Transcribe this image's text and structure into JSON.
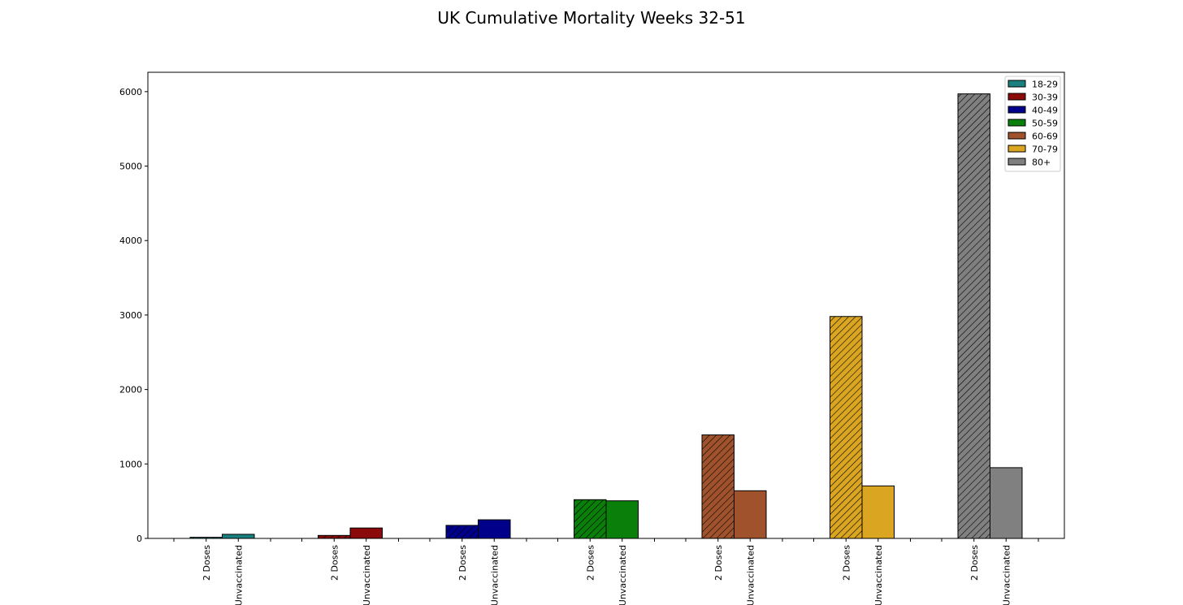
{
  "chart_data": {
    "type": "bar",
    "title": "UK Cumulative Mortality Weeks 32-51",
    "xlabel": "",
    "ylabel": "",
    "ylim": [
      0,
      6260
    ],
    "yticks": [
      0,
      1000,
      2000,
      3000,
      4000,
      5000,
      6000
    ],
    "grid": false,
    "legend_position": "top-right",
    "categories": [
      "2 Doses",
      "Unvaccinated"
    ],
    "series": [
      {
        "name": "18-29",
        "color": "#1a7f7f",
        "values": [
          15,
          55
        ]
      },
      {
        "name": "30-39",
        "color": "#8b0a0a",
        "values": [
          40,
          140
        ]
      },
      {
        "name": "40-49",
        "color": "#00008b",
        "values": [
          175,
          250
        ]
      },
      {
        "name": "50-59",
        "color": "#0a7f0a",
        "values": [
          520,
          505
        ]
      },
      {
        "name": "60-69",
        "color": "#a0522d",
        "values": [
          1390,
          640
        ]
      },
      {
        "name": "70-79",
        "color": "#daa520",
        "values": [
          2980,
          705
        ]
      },
      {
        "name": "80+",
        "color": "#808080",
        "values": [
          5970,
          950
        ]
      }
    ],
    "hatch_category": "2 Doses"
  }
}
